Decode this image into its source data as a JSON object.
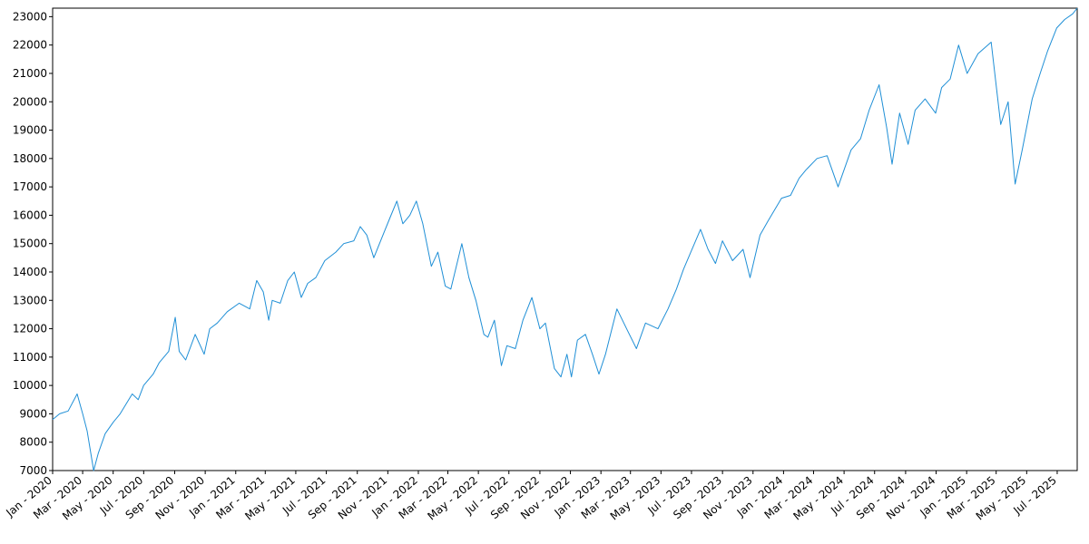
{
  "chart_data": {
    "type": "line",
    "title": "",
    "xlabel": "",
    "ylabel": "",
    "xlim": [
      "2020-01-01",
      "2025-08-10"
    ],
    "ylim": [
      7000,
      23300
    ],
    "grid": false,
    "line_color": "#1f8fd6",
    "yticks": [
      7000,
      8000,
      9000,
      10000,
      11000,
      12000,
      13000,
      14000,
      15000,
      16000,
      17000,
      18000,
      19000,
      20000,
      21000,
      22000,
      23000
    ],
    "xticks": [
      {
        "date": "2020-01-01",
        "label": "Jan - 2020"
      },
      {
        "date": "2020-03-01",
        "label": "Mar - 2020"
      },
      {
        "date": "2020-05-01",
        "label": "May - 2020"
      },
      {
        "date": "2020-07-01",
        "label": "Jul - 2020"
      },
      {
        "date": "2020-09-01",
        "label": "Sep - 2020"
      },
      {
        "date": "2020-11-01",
        "label": "Nov - 2020"
      },
      {
        "date": "2021-01-01",
        "label": "Jan - 2021"
      },
      {
        "date": "2021-03-01",
        "label": "Mar - 2021"
      },
      {
        "date": "2021-05-01",
        "label": "May - 2021"
      },
      {
        "date": "2021-07-01",
        "label": "Jul - 2021"
      },
      {
        "date": "2021-09-01",
        "label": "Sep - 2021"
      },
      {
        "date": "2021-11-01",
        "label": "Nov - 2021"
      },
      {
        "date": "2022-01-01",
        "label": "Jan - 2022"
      },
      {
        "date": "2022-03-01",
        "label": "Mar - 2022"
      },
      {
        "date": "2022-05-01",
        "label": "May - 2022"
      },
      {
        "date": "2022-07-01",
        "label": "Jul - 2022"
      },
      {
        "date": "2022-09-01",
        "label": "Sep - 2022"
      },
      {
        "date": "2022-11-01",
        "label": "Nov - 2022"
      },
      {
        "date": "2023-01-01",
        "label": "Jan - 2023"
      },
      {
        "date": "2023-03-01",
        "label": "Mar - 2023"
      },
      {
        "date": "2023-05-01",
        "label": "May - 2023"
      },
      {
        "date": "2023-07-01",
        "label": "Jul - 2023"
      },
      {
        "date": "2023-09-01",
        "label": "Sep - 2023"
      },
      {
        "date": "2023-11-01",
        "label": "Nov - 2023"
      },
      {
        "date": "2024-01-01",
        "label": "Jan - 2024"
      },
      {
        "date": "2024-03-01",
        "label": "Mar - 2024"
      },
      {
        "date": "2024-05-01",
        "label": "May - 2024"
      },
      {
        "date": "2024-07-01",
        "label": "Jul - 2024"
      },
      {
        "date": "2024-09-01",
        "label": "Sep - 2024"
      },
      {
        "date": "2024-11-01",
        "label": "Nov - 2024"
      },
      {
        "date": "2025-01-01",
        "label": "Jan - 2025"
      },
      {
        "date": "2025-03-01",
        "label": "Mar - 2025"
      },
      {
        "date": "2025-05-01",
        "label": "May - 2025"
      },
      {
        "date": "2025-07-01",
        "label": "Jul - 2025"
      }
    ],
    "series": [
      {
        "color": "#1f8fd6",
        "points": [
          [
            "2020-01-01",
            8800
          ],
          [
            "2020-01-15",
            9000
          ],
          [
            "2020-02-01",
            9100
          ],
          [
            "2020-02-19",
            9700
          ],
          [
            "2020-03-01",
            9000
          ],
          [
            "2020-03-10",
            8400
          ],
          [
            "2020-03-23",
            7000
          ],
          [
            "2020-04-01",
            7600
          ],
          [
            "2020-04-15",
            8300
          ],
          [
            "2020-05-01",
            8700
          ],
          [
            "2020-05-15",
            9000
          ],
          [
            "2020-06-08",
            9700
          ],
          [
            "2020-06-20",
            9500
          ],
          [
            "2020-07-01",
            10000
          ],
          [
            "2020-07-20",
            10400
          ],
          [
            "2020-08-01",
            10800
          ],
          [
            "2020-08-20",
            11200
          ],
          [
            "2020-09-02",
            12400
          ],
          [
            "2020-09-10",
            11200
          ],
          [
            "2020-09-23",
            10900
          ],
          [
            "2020-10-12",
            11800
          ],
          [
            "2020-10-30",
            11100
          ],
          [
            "2020-11-10",
            12000
          ],
          [
            "2020-11-25",
            12200
          ],
          [
            "2020-12-15",
            12600
          ],
          [
            "2021-01-08",
            12900
          ],
          [
            "2021-01-29",
            12700
          ],
          [
            "2021-02-12",
            13700
          ],
          [
            "2021-02-25",
            13300
          ],
          [
            "2021-03-08",
            12300
          ],
          [
            "2021-03-15",
            13000
          ],
          [
            "2021-03-31",
            12900
          ],
          [
            "2021-04-15",
            13700
          ],
          [
            "2021-04-28",
            14000
          ],
          [
            "2021-05-12",
            13100
          ],
          [
            "2021-05-25",
            13600
          ],
          [
            "2021-06-10",
            13800
          ],
          [
            "2021-06-28",
            14400
          ],
          [
            "2021-07-20",
            14700
          ],
          [
            "2021-08-05",
            15000
          ],
          [
            "2021-08-25",
            15100
          ],
          [
            "2021-09-07",
            15600
          ],
          [
            "2021-09-20",
            15300
          ],
          [
            "2021-10-04",
            14500
          ],
          [
            "2021-10-20",
            15200
          ],
          [
            "2021-11-05",
            15900
          ],
          [
            "2021-11-19",
            16500
          ],
          [
            "2021-12-01",
            15700
          ],
          [
            "2021-12-15",
            16000
          ],
          [
            "2021-12-28",
            16500
          ],
          [
            "2022-01-10",
            15700
          ],
          [
            "2022-01-27",
            14200
          ],
          [
            "2022-02-09",
            14700
          ],
          [
            "2022-02-24",
            13500
          ],
          [
            "2022-03-07",
            13400
          ],
          [
            "2022-03-29",
            15000
          ],
          [
            "2022-04-12",
            13800
          ],
          [
            "2022-04-26",
            13000
          ],
          [
            "2022-05-12",
            11800
          ],
          [
            "2022-05-20",
            11700
          ],
          [
            "2022-06-02",
            12300
          ],
          [
            "2022-06-16",
            10700
          ],
          [
            "2022-06-27",
            11400
          ],
          [
            "2022-07-14",
            11300
          ],
          [
            "2022-07-29",
            12300
          ],
          [
            "2022-08-16",
            13100
          ],
          [
            "2022-09-01",
            12000
          ],
          [
            "2022-09-12",
            12200
          ],
          [
            "2022-09-30",
            10600
          ],
          [
            "2022-10-13",
            10300
          ],
          [
            "2022-10-25",
            11100
          ],
          [
            "2022-11-03",
            10300
          ],
          [
            "2022-11-15",
            11600
          ],
          [
            "2022-12-01",
            11800
          ],
          [
            "2022-12-15",
            11100
          ],
          [
            "2022-12-28",
            10400
          ],
          [
            "2023-01-10",
            11100
          ],
          [
            "2023-02-02",
            12700
          ],
          [
            "2023-02-24",
            11900
          ],
          [
            "2023-03-13",
            11300
          ],
          [
            "2023-03-31",
            12200
          ],
          [
            "2023-04-25",
            12000
          ],
          [
            "2023-05-15",
            12700
          ],
          [
            "2023-06-01",
            13400
          ],
          [
            "2023-06-15",
            14100
          ],
          [
            "2023-07-19",
            15500
          ],
          [
            "2023-08-03",
            14800
          ],
          [
            "2023-08-18",
            14300
          ],
          [
            "2023-09-01",
            15100
          ],
          [
            "2023-09-21",
            14400
          ],
          [
            "2023-10-12",
            14800
          ],
          [
            "2023-10-26",
            13800
          ],
          [
            "2023-11-15",
            15300
          ],
          [
            "2023-12-01",
            15800
          ],
          [
            "2023-12-28",
            16600
          ],
          [
            "2024-01-15",
            16700
          ],
          [
            "2024-02-01",
            17300
          ],
          [
            "2024-02-15",
            17600
          ],
          [
            "2024-03-08",
            18000
          ],
          [
            "2024-03-28",
            18100
          ],
          [
            "2024-04-19",
            17000
          ],
          [
            "2024-05-01",
            17600
          ],
          [
            "2024-05-15",
            18300
          ],
          [
            "2024-06-03",
            18700
          ],
          [
            "2024-06-20",
            19700
          ],
          [
            "2024-07-10",
            20600
          ],
          [
            "2024-07-25",
            19100
          ],
          [
            "2024-08-05",
            17800
          ],
          [
            "2024-08-20",
            19600
          ],
          [
            "2024-09-06",
            18500
          ],
          [
            "2024-09-20",
            19700
          ],
          [
            "2024-10-10",
            20100
          ],
          [
            "2024-10-31",
            19600
          ],
          [
            "2024-11-12",
            20500
          ],
          [
            "2024-11-29",
            20800
          ],
          [
            "2024-12-16",
            22000
          ],
          [
            "2025-01-02",
            21000
          ],
          [
            "2025-01-24",
            21700
          ],
          [
            "2025-02-19",
            22100
          ],
          [
            "2025-03-10",
            19200
          ],
          [
            "2025-03-25",
            20000
          ],
          [
            "2025-04-08",
            17100
          ],
          [
            "2025-04-22",
            18300
          ],
          [
            "2025-05-12",
            20100
          ],
          [
            "2025-05-28",
            21000
          ],
          [
            "2025-06-12",
            21800
          ],
          [
            "2025-06-30",
            22600
          ],
          [
            "2025-07-16",
            22900
          ],
          [
            "2025-08-01",
            23100
          ],
          [
            "2025-08-10",
            23300
          ]
        ]
      }
    ]
  }
}
